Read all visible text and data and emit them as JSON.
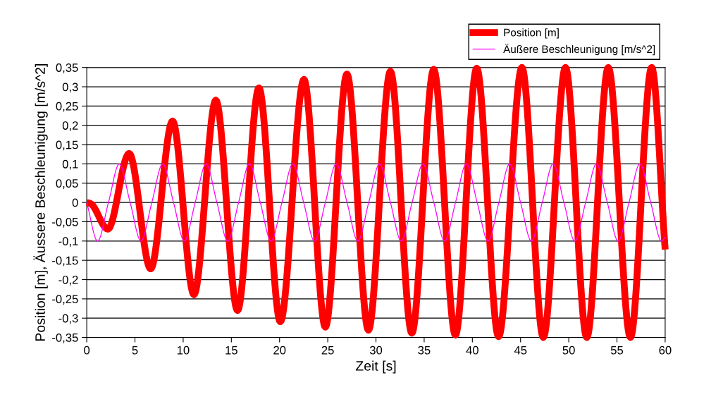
{
  "chart_data": {
    "type": "line",
    "xlabel": "Zeit [s]",
    "ylabel": "Position [m], Äussere Beschleunigung [m/s^2]",
    "xlim": [
      0,
      60
    ],
    "xticks": [
      0,
      5,
      10,
      15,
      20,
      25,
      30,
      35,
      40,
      45,
      50,
      55,
      60
    ],
    "ylim": [
      -0.35,
      0.35
    ],
    "yticks": [
      {
        "value": -0.35,
        "label": "-0,35"
      },
      {
        "value": -0.3,
        "label": "-0,3"
      },
      {
        "value": -0.25,
        "label": "-0,25"
      },
      {
        "value": -0.2,
        "label": "-0,2"
      },
      {
        "value": -0.15,
        "label": "-0,15"
      },
      {
        "value": -0.1,
        "label": "-0,1"
      },
      {
        "value": -0.05,
        "label": "-0,05"
      },
      {
        "value": 0,
        "label": "0"
      },
      {
        "value": 0.05,
        "label": "0,05"
      },
      {
        "value": 0.1,
        "label": "0,1"
      },
      {
        "value": 0.15,
        "label": "0,15"
      },
      {
        "value": 0.2,
        "label": "0,2"
      },
      {
        "value": 0.25,
        "label": "0,25"
      },
      {
        "value": 0.3,
        "label": "0,3"
      },
      {
        "value": 0.35,
        "label": "0,35"
      }
    ],
    "grid": "y",
    "legend": "top right",
    "marker": "none",
    "line_style": "solid",
    "series": [
      {
        "name": "Position [m]",
        "color": "#ff0000",
        "x": [
          0,
          0.4,
          2.19,
          4.4,
          6.63,
          8.9,
          11.12,
          13.39,
          15.64,
          17.86,
          20.08,
          22.53,
          24.75,
          26.99,
          29.22,
          31.5,
          33.72,
          35.99,
          38.24,
          40.45,
          42.72,
          45.14,
          47.36,
          49.66,
          51.87,
          54.1,
          56.4,
          58.6,
          60
        ],
        "values": [
          0,
          -0.003,
          -0.069,
          0.127,
          -0.172,
          0.211,
          -0.239,
          0.265,
          -0.28,
          0.297,
          -0.309,
          0.319,
          -0.323,
          0.333,
          -0.331,
          0.34,
          -0.339,
          0.345,
          -0.344,
          0.348,
          -0.348,
          0.35,
          -0.35,
          0.35,
          -0.35,
          0.35,
          -0.35,
          0.35,
          -0.122
        ]
      },
      {
        "name": "Äußere Beschleunigung [m/s^2]",
        "color": "#ff00ff",
        "x": [
          0,
          1.125,
          2.25,
          3.375,
          4.5,
          5.625,
          6.75,
          7.875,
          9,
          10.125,
          11.25,
          12.375,
          13.5,
          14.625,
          15.75,
          16.875,
          18,
          19.125,
          20.25,
          21.375,
          22.5,
          23.625,
          24.75,
          25.875,
          27,
          28.125,
          29.25,
          30.375,
          31.5,
          32.625,
          33.75,
          34.875,
          36,
          37.125,
          38.25,
          39.375,
          40.5,
          41.625,
          42.75,
          43.875,
          45,
          46.125,
          47.25,
          48.375,
          49.5,
          50.625,
          51.75,
          52.875,
          54,
          55.125,
          56.25,
          57.375,
          58.5,
          59.625,
          60
        ],
        "values": [
          0,
          -0.1,
          0,
          0.1,
          0,
          -0.1,
          0,
          0.1,
          0,
          -0.1,
          0,
          0.1,
          0,
          -0.1,
          0,
          0.1,
          0,
          -0.1,
          0,
          0.1,
          0,
          -0.1,
          0,
          0.1,
          0,
          -0.1,
          0,
          0.1,
          0,
          -0.1,
          0,
          0.1,
          0,
          -0.1,
          0,
          0.1,
          0,
          -0.1,
          0,
          0.1,
          0,
          -0.1,
          0,
          0.1,
          0,
          -0.1,
          0,
          0.1,
          0,
          -0.1,
          0,
          0.1,
          0,
          -0.1,
          -0.09
        ]
      }
    ]
  }
}
